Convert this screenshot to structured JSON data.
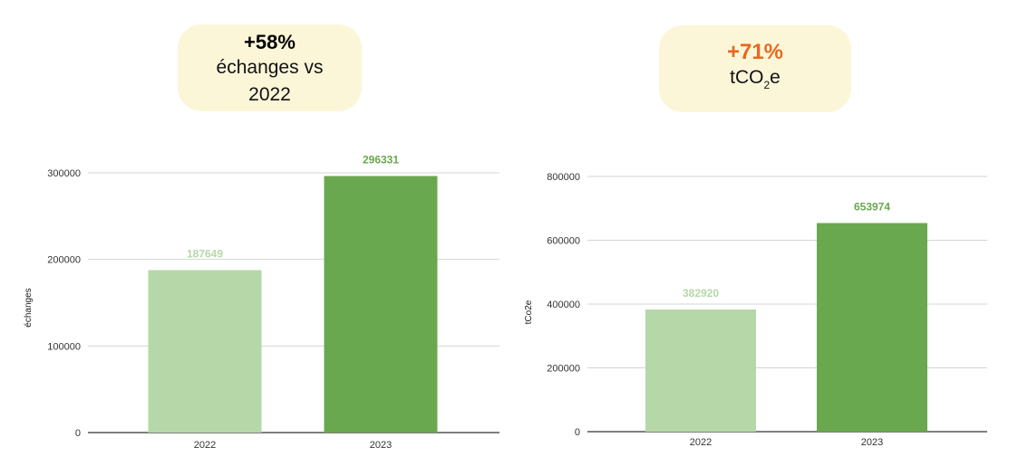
{
  "badges": {
    "left": {
      "pct": "+58%",
      "line1": "échanges vs",
      "line2": "2022"
    },
    "right": {
      "pct": "+71%",
      "text_main": "tCO",
      "text_sub": "2",
      "text_end": "e"
    }
  },
  "colors": {
    "light_green": "#b6d7a8",
    "dark_green": "#6aa84f",
    "badge_bg": "#fcf6d9",
    "accent_orange": "#e8681e"
  },
  "chart_data": [
    {
      "type": "bar",
      "categories": [
        "2022",
        "2023"
      ],
      "values": [
        187649,
        296331
      ],
      "data_labels": [
        "187649",
        "296331"
      ],
      "ylabel": "échanges",
      "ylim": [
        0,
        300000
      ],
      "yticks": [
        0,
        100000,
        200000,
        300000
      ],
      "ytick_labels": [
        "0",
        "100000",
        "200000",
        "300000"
      ],
      "grid": true,
      "bar_colors": [
        "#b6d7a8",
        "#6aa84f"
      ]
    },
    {
      "type": "bar",
      "categories": [
        "2022",
        "2023"
      ],
      "values": [
        382920,
        653974
      ],
      "data_labels": [
        "382920",
        "653974"
      ],
      "ylabel": "tCo2e",
      "ylim": [
        0,
        800000
      ],
      "yticks": [
        0,
        200000,
        400000,
        600000,
        800000
      ],
      "ytick_labels": [
        "0",
        "200000",
        "400000",
        "600000",
        "800000"
      ],
      "grid": true,
      "bar_colors": [
        "#b6d7a8",
        "#6aa84f"
      ]
    }
  ]
}
